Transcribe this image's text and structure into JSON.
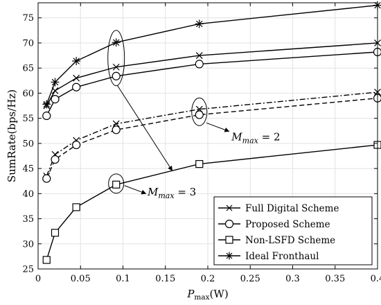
{
  "chart_data": {
    "type": "line",
    "title": "",
    "xlabel": "P_max(W)",
    "xlabel_main": "P",
    "xlabel_sub": "max",
    "xlabel_unit": "(W)",
    "ylabel": "SumRate(bps/Hz)",
    "xlim": [
      0,
      0.4
    ],
    "ylim": [
      25,
      78
    ],
    "xticks": [
      0,
      0.05,
      0.1,
      0.15,
      0.2,
      0.25,
      0.3,
      0.35,
      0.4
    ],
    "xtick_labels": [
      "0",
      "0.05",
      "0.1",
      "0.15",
      "0.2",
      "0.25",
      "0.3",
      "0.35",
      "0.4"
    ],
    "yticks": [
      25,
      30,
      35,
      40,
      45,
      50,
      55,
      60,
      65,
      70,
      75
    ],
    "ytick_labels": [
      "25",
      "30",
      "35",
      "40",
      "45",
      "50",
      "55",
      "60",
      "65",
      "70",
      "75"
    ],
    "grid": true,
    "legend_position": "bottom-right",
    "legend": [
      {
        "label": "Full Digital Scheme",
        "marker": "x"
      },
      {
        "label": "Proposed Scheme",
        "marker": "circle"
      },
      {
        "label": "Non-LSFD Scheme",
        "marker": "square"
      },
      {
        "label": "Ideal Fronthaul",
        "marker": "star"
      }
    ],
    "series": [
      {
        "name": "Full Digital Scheme",
        "group": "M_max=3",
        "marker": "x",
        "dash": "solid",
        "x": [
          0.01,
          0.02,
          0.045,
          0.092,
          0.19,
          0.4
        ],
        "y": [
          57.5,
          60.5,
          63.0,
          65.2,
          67.5,
          70.0
        ]
      },
      {
        "name": "Proposed Scheme",
        "group": "M_max=3",
        "marker": "circle",
        "dash": "solid",
        "x": [
          0.01,
          0.02,
          0.045,
          0.092,
          0.19,
          0.4
        ],
        "y": [
          55.5,
          58.8,
          61.2,
          63.4,
          65.8,
          68.2
        ]
      },
      {
        "name": "Non-LSFD Scheme",
        "group": "M_max=3",
        "marker": "square",
        "dash": "solid",
        "x": [
          0.01,
          0.02,
          0.045,
          0.092,
          0.19,
          0.4
        ],
        "y": [
          26.8,
          32.2,
          37.3,
          41.8,
          45.9,
          49.7
        ]
      },
      {
        "name": "Ideal Fronthaul",
        "group": "M_max=3",
        "marker": "star",
        "dash": "solid",
        "x": [
          0.01,
          0.02,
          0.045,
          0.092,
          0.19,
          0.4
        ],
        "y": [
          57.8,
          62.2,
          66.4,
          70.1,
          73.8,
          77.5
        ]
      },
      {
        "name": "Full Digital Scheme",
        "group": "M_max=2",
        "marker": "x",
        "dash": "dashdot",
        "x": [
          0.01,
          0.02,
          0.045,
          0.092,
          0.19,
          0.4
        ],
        "y": [
          43.5,
          47.8,
          50.6,
          53.9,
          56.8,
          60.2
        ]
      },
      {
        "name": "Proposed Scheme",
        "group": "M_max=2",
        "marker": "circle",
        "dash": "dashed",
        "x": [
          0.01,
          0.02,
          0.045,
          0.092,
          0.19,
          0.4
        ],
        "y": [
          43.0,
          46.8,
          49.7,
          52.7,
          55.7,
          59.0
        ]
      }
    ],
    "annotations": [
      {
        "text_main": "M",
        "text_sub": "max",
        "text_value": " = 2"
      },
      {
        "text_main": "M",
        "text_sub": "max",
        "text_value": " = 3"
      }
    ]
  }
}
